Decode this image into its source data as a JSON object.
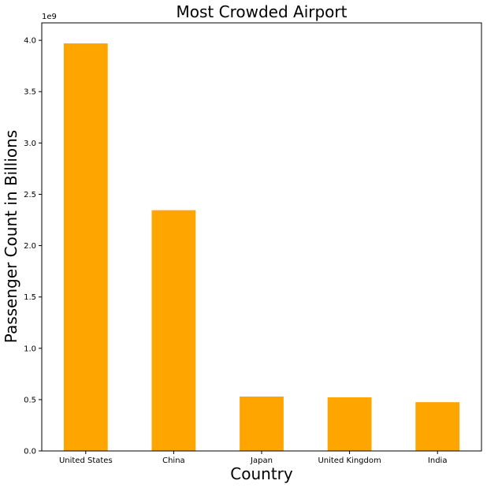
{
  "chart_data": {
    "type": "bar",
    "title": "Most Crowded Airport",
    "xlabel": "Country",
    "ylabel": "Passenger Count in Billions",
    "offset_label": "1e9",
    "categories": [
      "United States",
      "China",
      "Japan",
      "United Kingdom",
      "India"
    ],
    "values": [
      3970000000,
      2345000000,
      530000000,
      522000000,
      475000000
    ],
    "ylim": [
      0,
      4170000000
    ],
    "yticks": [
      0,
      500000000,
      1000000000,
      1500000000,
      2000000000,
      2500000000,
      3000000000,
      3500000000,
      4000000000
    ],
    "ytick_labels": [
      "0.0",
      "0.5",
      "1.0",
      "1.5",
      "2.0",
      "2.5",
      "3.0",
      "3.5",
      "4.0"
    ],
    "bar_color": "#ffa500",
    "grid": false,
    "legend": false
  }
}
